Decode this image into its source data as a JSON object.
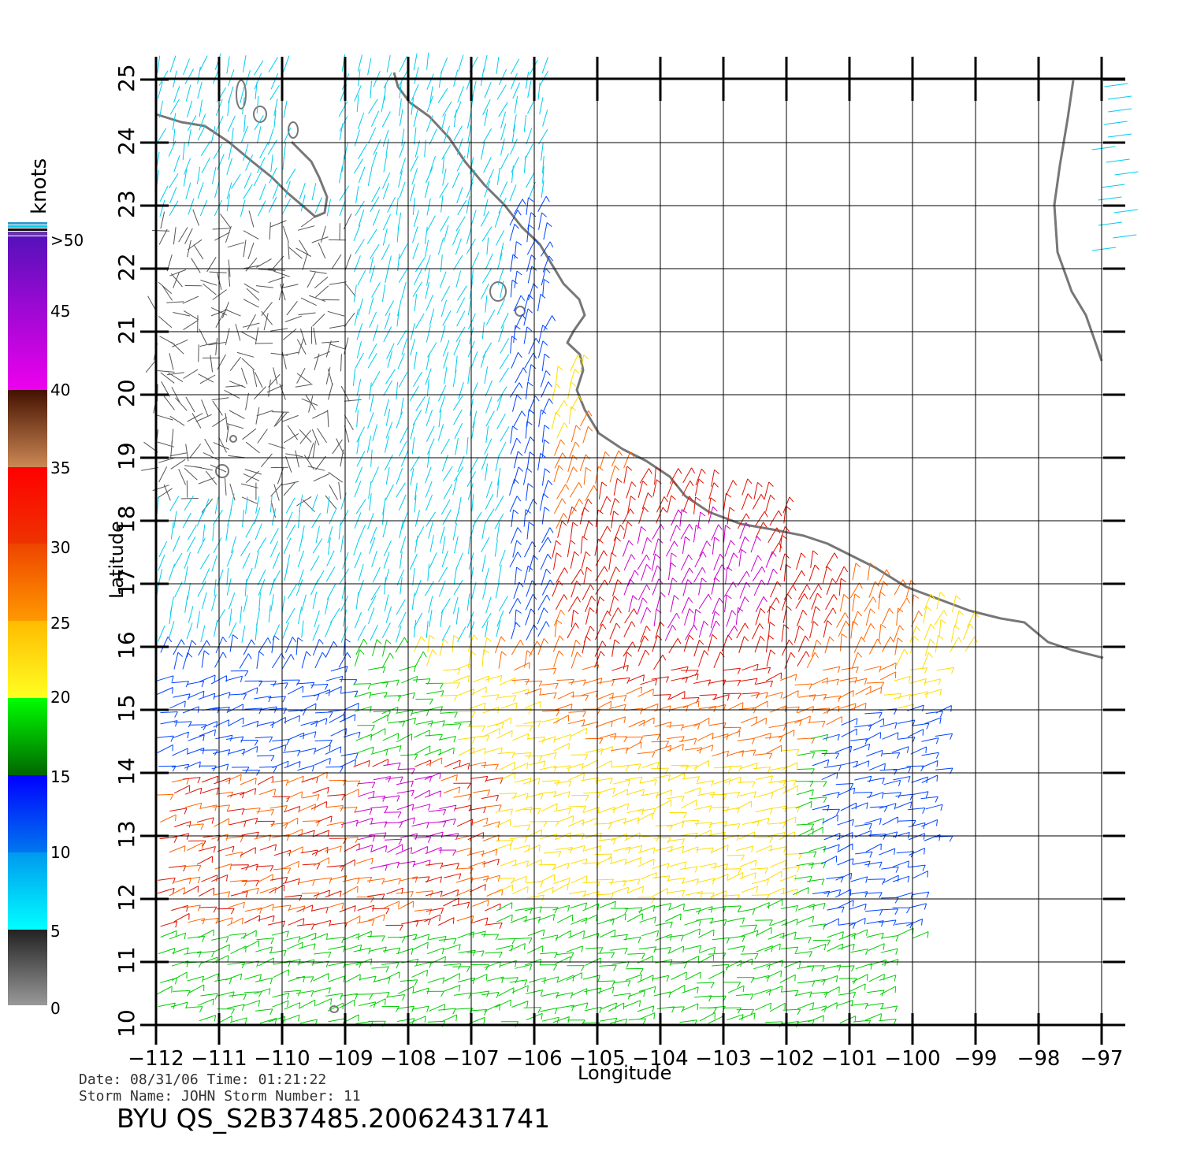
{
  "map": {
    "lon_ticks": [
      -112,
      -111,
      -110,
      -109,
      -108,
      -107,
      -106,
      -105,
      -104,
      -103,
      -102,
      -101,
      -100,
      -99,
      -98,
      -97
    ],
    "lat_ticks": [
      10,
      11,
      12,
      13,
      14,
      15,
      16,
      17,
      18,
      19,
      20,
      21,
      22,
      23,
      24,
      25
    ],
    "lon_range": [
      -112,
      -96.6
    ],
    "lat_range": [
      10,
      25
    ],
    "xlabel": "Longitude",
    "ylabel": "Latitude"
  },
  "legend": {
    "unit": "knots",
    "labels": [
      ">50",
      "45",
      "40",
      "35",
      "30",
      "25",
      "20",
      "15",
      "10",
      "5",
      "0"
    ],
    "colors": {
      "0-5": "#555555",
      "5-15": "#00ccee",
      "15-20": "#0044ff",
      "20-25": "#00cc00",
      "25-30": "#ffdd00",
      "30-35": "#ff6600",
      "35-40": "#dd1100",
      "40-45": "#774422",
      "45-50": "#cc00cc",
      "50+": "#6600cc"
    }
  },
  "footer": {
    "line1": "Date: 08/31/06   Time: 01:21:22",
    "line2": "Storm  Name: JOHN   Storm  Number: 11",
    "title": "BYU  QS_S2B37485.20062431741"
  }
}
